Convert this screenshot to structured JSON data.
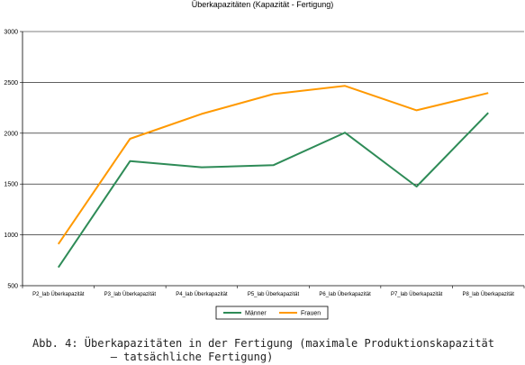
{
  "caption": {
    "line1": "Abb. 4: Überkapazitäten in der Fertigung (maximale Produktionskapazität",
    "line2": "– tatsächliche Fertigung)"
  },
  "chart_data": {
    "type": "line",
    "title": "Überkapazitäten (Kapazität - Fertigung)",
    "xlabel": "",
    "ylabel": "",
    "categories": [
      "P2_lab Überkapazität",
      "P3_lab Überkapazität",
      "P4_lab Überkapazität",
      "P5_lab Überkapazität",
      "P6_lab Überkapazität",
      "P7_lab Überkapazität",
      "P8_lab Überkapazität"
    ],
    "ylim": [
      500,
      3000
    ],
    "yticks": [
      500,
      1000,
      1500,
      2000,
      2500,
      3000
    ],
    "grid": true,
    "legend_position": "bottom",
    "series": [
      {
        "name": "Männer",
        "color": "#2e8b57",
        "values": [
          680,
          1725,
          1665,
          1685,
          2005,
          1475,
          2200
        ]
      },
      {
        "name": "Frauen",
        "color": "#ff9900",
        "values": [
          910,
          1945,
          2190,
          2385,
          2465,
          2225,
          2395
        ]
      }
    ]
  }
}
